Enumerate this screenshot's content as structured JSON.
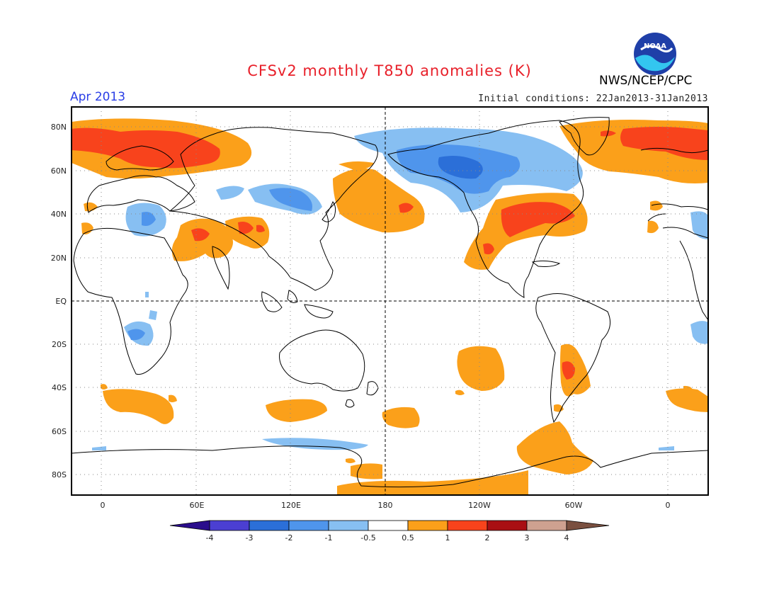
{
  "header": {
    "title": "CFSv2 monthly T850 anomalies (K)",
    "month": "Apr 2013",
    "initial_conditions": "Initial conditions: 22Jan2013-31Jan2013",
    "agency": "NWS/NCEP/CPC",
    "logo_text": "NOAA"
  },
  "map": {
    "lat_labels": [
      "80N",
      "60N",
      "40N",
      "20N",
      "EQ",
      "20S",
      "40S",
      "60S",
      "80S"
    ],
    "lon_labels": [
      "0",
      "60E",
      "120E",
      "180",
      "120W",
      "60W",
      "0"
    ]
  },
  "colorbar": {
    "labels": [
      "-4",
      "-3",
      "-2",
      "-1",
      "-0.5",
      "0.5",
      "1",
      "2",
      "3",
      "4"
    ],
    "colors": {
      "below_-4": "#2a0d8c",
      "-4_-3": "#4b3fd2",
      "-3_-2": "#2b6fd8",
      "-2_-1": "#4f95ec",
      "-1_-0.5": "#87bff2",
      "-0.5_0.5": "#ffffff",
      "0.5_1": "#fba01a",
      "1_2": "#f8431c",
      "2_3": "#a90f13",
      "3_4": "#cea190",
      "above_4": "#7a5040"
    }
  }
}
